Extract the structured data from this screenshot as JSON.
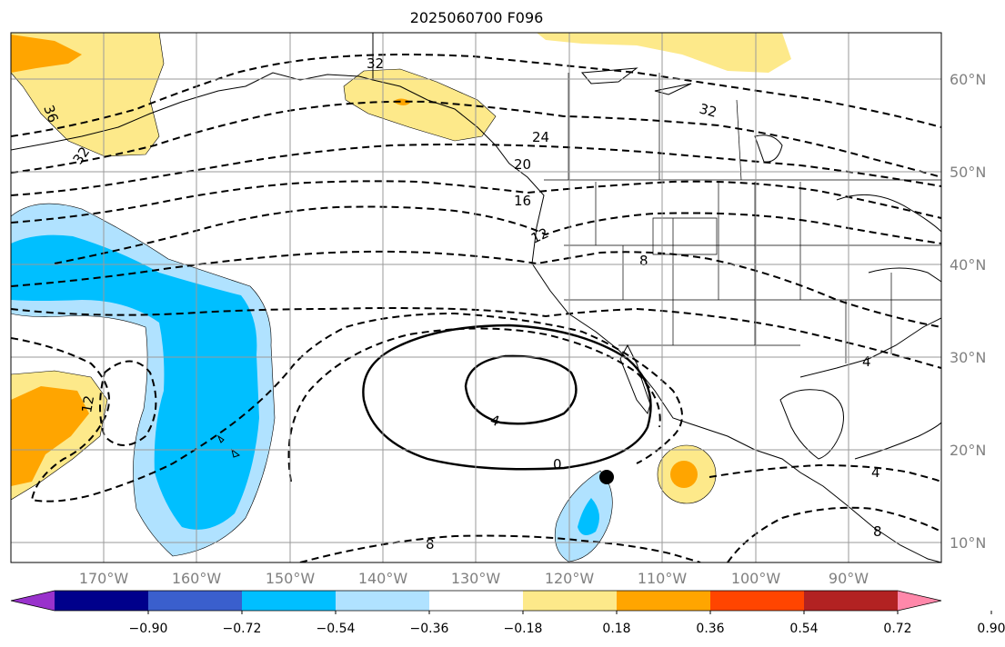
{
  "title": "2025060700 F096",
  "lon_labels": [
    "170°W",
    "160°W",
    "150°W",
    "140°W",
    "130°W",
    "120°W",
    "110°W",
    "100°W",
    "90°W"
  ],
  "lat_labels": [
    "60°N",
    "50°N",
    "40°N",
    "30°N",
    "20°N",
    "10°N"
  ],
  "colorbar": {
    "tick_labels": [
      "−0.90",
      "−0.72",
      "−0.54",
      "−0.36",
      "−0.18",
      "0.18",
      "0.36",
      "0.54",
      "0.72",
      "0.90"
    ],
    "colors": [
      "#9932cc",
      "#00008b",
      "#3a5fcd",
      "#00bfff",
      "#b0e2ff",
      "#ffffff",
      "#fde98a",
      "#ffa500",
      "#ff4500",
      "#b22222",
      "#ff88aa"
    ]
  },
  "contour_labels": [
    "36",
    "32",
    "32",
    "32",
    "24",
    "20",
    "16",
    "12",
    "8",
    "4",
    "0",
    "4",
    "12",
    "8",
    "4",
    "8"
  ],
  "marker": "black dot"
}
